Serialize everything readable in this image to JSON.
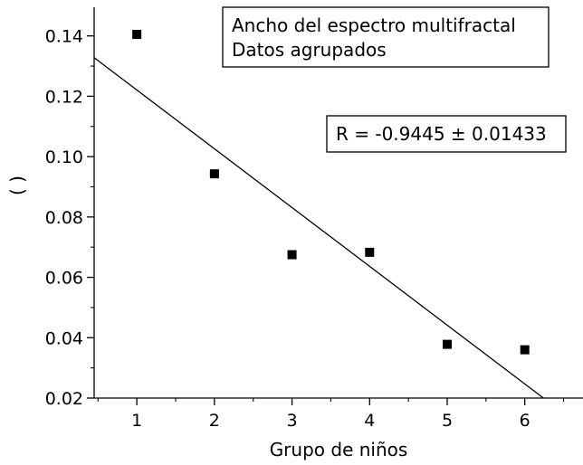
{
  "chart_data": {
    "type": "scatter",
    "xlabel": "Grupo de niños",
    "ylabel": "( )",
    "xlim": [
      0.45,
      6.75
    ],
    "ylim": [
      0.02,
      0.1495
    ],
    "x_ticks": [
      1,
      2,
      3,
      4,
      5,
      6
    ],
    "x_tick_labels": [
      "1",
      "2",
      "3",
      "4",
      "5",
      "6"
    ],
    "y_ticks": [
      0.02,
      0.04,
      0.06,
      0.08,
      0.1,
      0.12,
      0.14
    ],
    "y_tick_labels": [
      "0.02",
      "0.04",
      "0.06",
      "0.08",
      "0.10",
      "0.12",
      "0.14"
    ],
    "series": [
      {
        "x": [
          1,
          2,
          3,
          4,
          5,
          6
        ],
        "y": [
          0.1405,
          0.0943,
          0.0675,
          0.0683,
          0.0378,
          0.036
        ],
        "marker": "square",
        "color": "#000000"
      }
    ],
    "fit_line": {
      "x": [
        0.45,
        6.24
      ],
      "y": [
        0.1328,
        0.02
      ],
      "color": "#000000"
    },
    "legend_lines": [
      "Ancho del espectro multifractal",
      "Datos agrupados"
    ],
    "annotation": "R = -0.9445 ± 0.01433",
    "grid": false
  }
}
